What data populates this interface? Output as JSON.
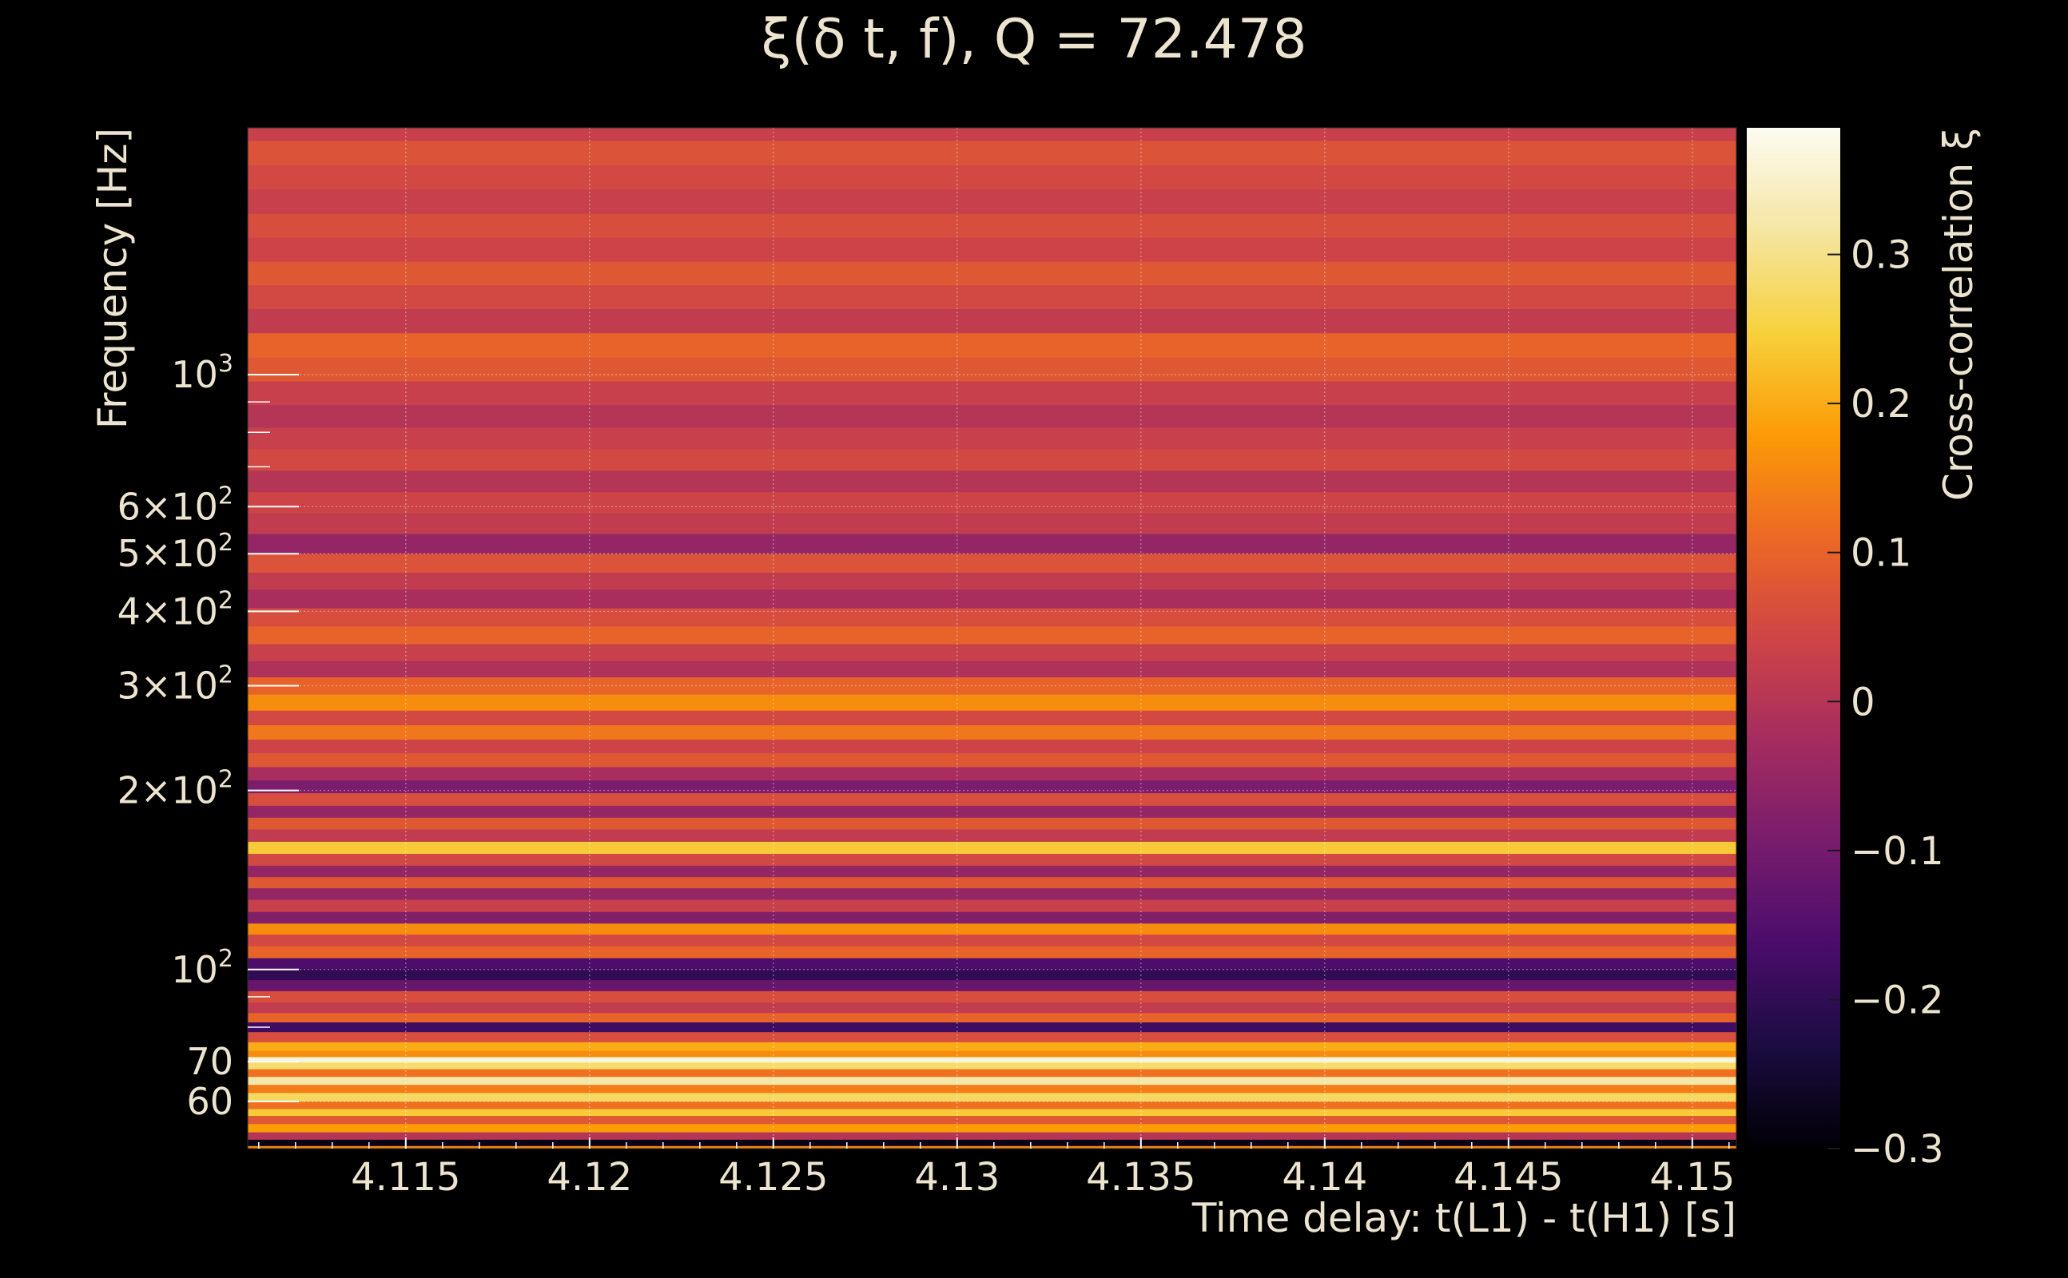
{
  "chart_data": {
    "type": "heatmap",
    "title": "ξ(δ t, f), Q = 72.478",
    "xlabel": "Time delay: t(L1) - t(H1) [s]",
    "ylabel": "Frequency [Hz]",
    "colorbar_label": "Cross-correlation ξ",
    "colormap": "inferno",
    "xlim": [
      4.1107,
      4.1512
    ],
    "ylim": [
      50,
      2600
    ],
    "yscale": "log",
    "clim": [
      -0.3,
      0.385
    ],
    "grid": true,
    "x_ticks": [
      {
        "value": 4.115,
        "label": "4.115"
      },
      {
        "value": 4.12,
        "label": "4.12"
      },
      {
        "value": 4.125,
        "label": "4.125"
      },
      {
        "value": 4.13,
        "label": "4.13"
      },
      {
        "value": 4.135,
        "label": "4.135"
      },
      {
        "value": 4.14,
        "label": "4.14"
      },
      {
        "value": 4.145,
        "label": "4.145"
      },
      {
        "value": 4.15,
        "label": "4.15"
      }
    ],
    "y_ticks": [
      {
        "value": 60,
        "label": "60"
      },
      {
        "value": 70,
        "label": "70"
      },
      {
        "value": 100,
        "label": "10",
        "exponent": "2"
      },
      {
        "value": 200,
        "label": "2×10",
        "exponent": "2"
      },
      {
        "value": 300,
        "label": "3×10",
        "exponent": "2"
      },
      {
        "value": 400,
        "label": "4×10",
        "exponent": "2"
      },
      {
        "value": 500,
        "label": "5×10",
        "exponent": "2"
      },
      {
        "value": 600,
        "label": "6×10",
        "exponent": "2"
      },
      {
        "value": 1000,
        "label": "10",
        "exponent": "3"
      }
    ],
    "y_minor_ticks": [
      80,
      90,
      700,
      800,
      900
    ],
    "colorbar_ticks": [
      {
        "value": 0.3,
        "label": "0.3"
      },
      {
        "value": 0.2,
        "label": "0.2"
      },
      {
        "value": 0.1,
        "label": "0.1"
      },
      {
        "value": 0,
        "label": "0"
      },
      {
        "value": -0.1,
        "label": "−0.1"
      },
      {
        "value": -0.2,
        "label": "−0.2"
      },
      {
        "value": -0.3,
        "label": "−0.3"
      }
    ],
    "bands": [
      {
        "f": 2600,
        "xi": 0.03
      },
      {
        "f": 2350,
        "xi": 0.07
      },
      {
        "f": 2150,
        "xi": 0.05
      },
      {
        "f": 1950,
        "xi": 0.03
      },
      {
        "f": 1780,
        "xi": 0.06
      },
      {
        "f": 1620,
        "xi": 0.04
      },
      {
        "f": 1480,
        "xi": 0.08
      },
      {
        "f": 1350,
        "xi": 0.05
      },
      {
        "f": 1230,
        "xi": 0.02
      },
      {
        "f": 1120,
        "xi": 0.1
      },
      {
        "f": 1020,
        "xi": 0.08
      },
      {
        "f": 930,
        "xi": 0.03
      },
      {
        "f": 850,
        "xi": 0.0
      },
      {
        "f": 780,
        "xi": 0.03
      },
      {
        "f": 720,
        "xi": 0.05
      },
      {
        "f": 660,
        "xi": 0.0
      },
      {
        "f": 610,
        "xi": 0.04
      },
      {
        "f": 560,
        "xi": 0.02
      },
      {
        "f": 520,
        "xi": -0.05
      },
      {
        "f": 480,
        "xi": 0.07
      },
      {
        "f": 450,
        "xi": 0.02
      },
      {
        "f": 420,
        "xi": -0.02
      },
      {
        "f": 390,
        "xi": 0.06
      },
      {
        "f": 365,
        "xi": 0.1
      },
      {
        "f": 340,
        "xi": 0.03
      },
      {
        "f": 320,
        "xi": -0.01
      },
      {
        "f": 300,
        "xi": 0.1
      },
      {
        "f": 280,
        "xi": 0.16
      },
      {
        "f": 265,
        "xi": 0.05
      },
      {
        "f": 250,
        "xi": 0.13
      },
      {
        "f": 237,
        "xi": 0.04
      },
      {
        "f": 225,
        "xi": 0.08
      },
      {
        "f": 213,
        "xi": -0.02
      },
      {
        "f": 203,
        "xi": -0.09
      },
      {
        "f": 193,
        "xi": 0.06
      },
      {
        "f": 184,
        "xi": -0.05
      },
      {
        "f": 176,
        "xi": 0.08
      },
      {
        "f": 168,
        "xi": 0.02
      },
      {
        "f": 160,
        "xi": 0.24
      },
      {
        "f": 153,
        "xi": 0.05
      },
      {
        "f": 146,
        "xi": -0.05
      },
      {
        "f": 140,
        "xi": 0.08
      },
      {
        "f": 134,
        "xi": -0.05
      },
      {
        "f": 128,
        "xi": 0.03
      },
      {
        "f": 122,
        "xi": -0.08
      },
      {
        "f": 117,
        "xi": 0.16
      },
      {
        "f": 112,
        "xi": 0.05
      },
      {
        "f": 107,
        "xi": 0.1
      },
      {
        "f": 102,
        "xi": -0.16
      },
      {
        "f": 98,
        "xi": -0.2
      },
      {
        "f": 94,
        "xi": -0.12
      },
      {
        "f": 90,
        "xi": 0.06
      },
      {
        "f": 86,
        "xi": 0.02
      },
      {
        "f": 83,
        "xi": 0.1
      },
      {
        "f": 80,
        "xi": -0.18
      },
      {
        "f": 77,
        "xi": 0.06
      },
      {
        "f": 74,
        "xi": 0.2
      },
      {
        "f": 72,
        "xi": 0.16
      },
      {
        "f": 70.5,
        "xi": 0.36
      },
      {
        "f": 69,
        "xi": 0.28
      },
      {
        "f": 67,
        "xi": 0.12
      },
      {
        "f": 65,
        "xi": 0.32
      },
      {
        "f": 63,
        "xi": 0.14
      },
      {
        "f": 61,
        "xi": 0.27
      },
      {
        "f": 59,
        "xi": 0.12
      },
      {
        "f": 57.5,
        "xi": 0.24
      },
      {
        "f": 56,
        "xi": 0.08
      },
      {
        "f": 54,
        "xi": 0.18
      },
      {
        "f": 52.5,
        "xi": 0.0
      },
      {
        "f": 51,
        "xi": -0.28
      },
      {
        "f": 50,
        "xi": 0.15
      }
    ]
  }
}
